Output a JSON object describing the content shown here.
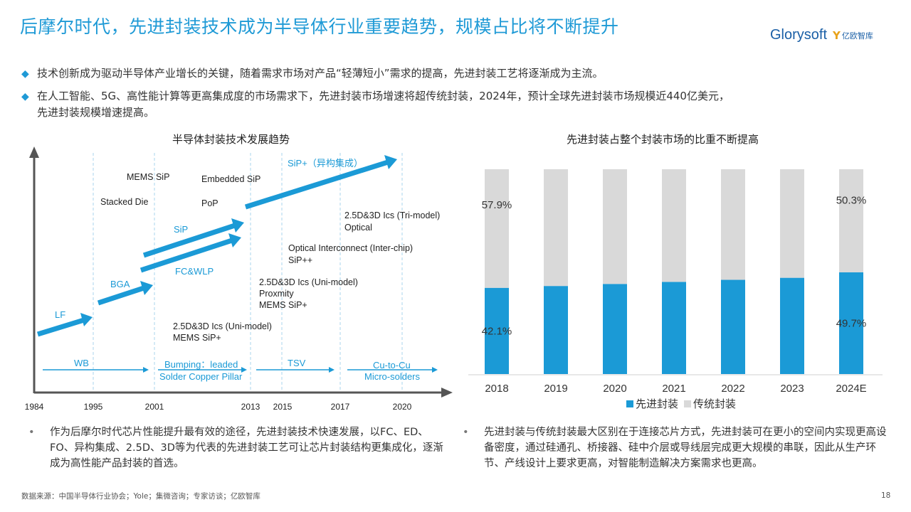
{
  "header": {
    "title": "后摩尔时代，先进封装技术成为半导体行业重要趋势，规模占比将不断提升",
    "brand_name": "Glorysoft",
    "brand_mark": "Y",
    "brand_name2": "亿欧智库"
  },
  "bullets": [
    "技术创新成为驱动半导体产业增长的关键，随着需求市场对产品“轻薄短小”需求的提高，先进封装工艺将逐渐成为主流。",
    "在人工智能、5G、高性能计算等更高集成度的市场需求下，先进封装市场增速将超传统封装，2024年，预计全球先进封装市场规模近440亿美元，",
    "先进封装规模增速提高。"
  ],
  "left_chart": {
    "title": "半导体封装技术发展趋势",
    "years": [
      "1984",
      "1995",
      "2001",
      "2013",
      "2015",
      "2017",
      "2020"
    ],
    "arrow_labels": [
      "LF",
      "BGA",
      "FC&WLP",
      "SiP",
      "SiP+（异构集成）"
    ],
    "annotations": {
      "mems_sip": "MEMS SiP",
      "embedded_sip": "Embedded SiP",
      "stacked_die": "Stacked Die",
      "pop": "PoP",
      "tri_1": "2.5D&3D Ics (Tri-model)",
      "tri_2": "Optical",
      "opt_1": "Optical Interconnect (Inter-chip)",
      "opt_2": "SiP++",
      "uni_a1": "2.5D&3D Ics (Uni-model)",
      "uni_a2": "Proxmity",
      "uni_a3": "MEMS SiP+",
      "uni_b1": "2.5D&3D Ics (Uni-model)",
      "uni_b2": "MEMS SiP+"
    },
    "bottom_labels": {
      "wb": "WB",
      "bump1": "Bumping：leaded",
      "bump2": "Solder Copper Pillar",
      "tsv": "TSV",
      "cu1": "Cu-to-Cu",
      "cu2": "Micro-solders"
    }
  },
  "chart_data": {
    "type": "bar",
    "title": "先进封装占整个封装市场的比重不断提高",
    "categories": [
      "2018",
      "2019",
      "2020",
      "2021",
      "2022",
      "2023",
      "2024E"
    ],
    "series": [
      {
        "name": "先进封装",
        "values": [
          42.1,
          43.0,
          44.0,
          45.0,
          46.0,
          47.0,
          49.7
        ]
      },
      {
        "name": "传统封装",
        "values": [
          57.9,
          57.0,
          56.0,
          55.0,
          54.0,
          53.0,
          50.3
        ]
      }
    ],
    "data_labels": {
      "first_adv": "42.1%",
      "first_trad": "57.9%",
      "last_adv": "49.7%",
      "last_trad": "50.3%"
    },
    "stacked": true,
    "ylim": [
      0,
      100
    ],
    "colors": {
      "advanced": "#1b9ad6",
      "traditional": "#d9d9d9"
    },
    "legend": "bottom",
    "grid": false
  },
  "notes": {
    "left": "作为后摩尔时代芯片性能提升最有效的途径，先进封装技术快速发展，以FC、ED、FO、异构集成、2.5D、3D等为代表的先进封装工艺可让芯片封装结构更集成化，逐渐成为高性能产品封装的首选。",
    "right": "先进封装与传统封装最大区别在于连接芯片方式，先进封装可在更小的空间内实现更高设备密度，通过硅通孔、桥接器、硅中介层或导线层完成更大规模的串联，因此从生产环节、产线设计上要求更高，对智能制造解决方案需求也更高。"
  },
  "footer": {
    "source": "数据来源：中国半导体行业协会；Yole；集微咨询；专家访谈；亿欧智库",
    "page": "18"
  }
}
